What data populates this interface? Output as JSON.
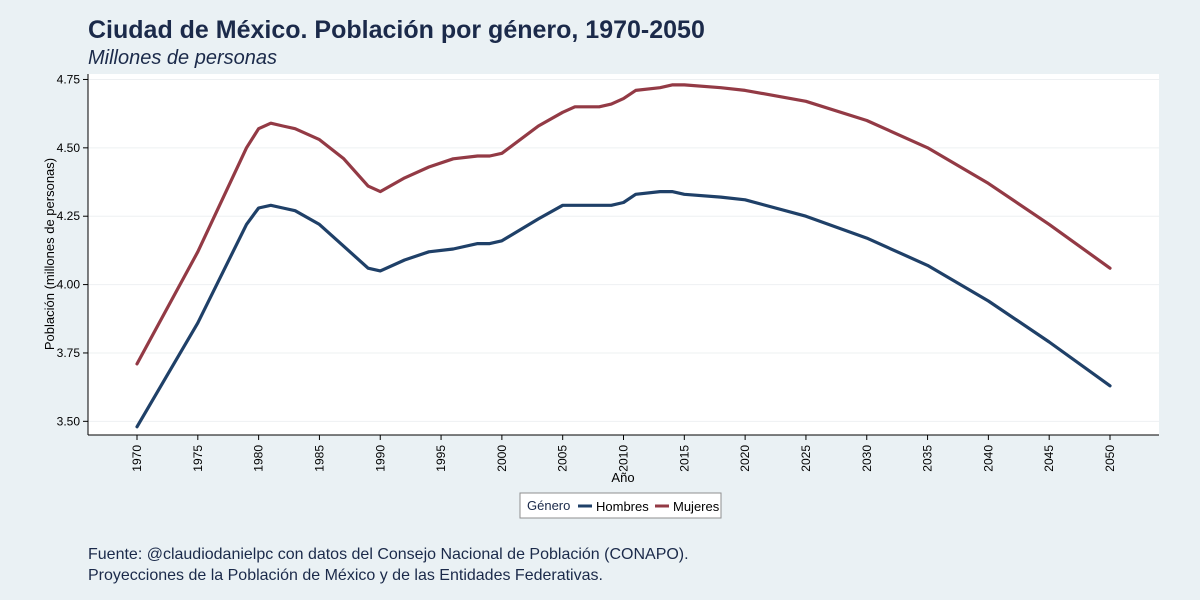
{
  "chart_data": {
    "type": "line",
    "title": "Ciudad de México. Población por género, 1970-2050",
    "subtitle": "Millones de personas",
    "xlabel": "Año",
    "ylabel": "Población (millones de personas)",
    "xlim": [
      1970,
      2050
    ],
    "ylim": [
      3.45,
      4.77
    ],
    "xticks": [
      1970,
      1975,
      1980,
      1985,
      1990,
      1995,
      2000,
      2005,
      2010,
      2015,
      2020,
      2025,
      2030,
      2035,
      2040,
      2045,
      2050
    ],
    "yticks": [
      3.5,
      3.75,
      4.0,
      4.25,
      4.5,
      4.75
    ],
    "ytick_labels": [
      "3.50",
      "3.75",
      "4.00",
      "4.25",
      "4.50",
      "4.75"
    ],
    "grid": true,
    "legend": {
      "title": "Género",
      "placement": "bottom-center"
    },
    "series": [
      {
        "name": "Hombres",
        "color": "#1f4068",
        "x": [
          1970,
          1975,
          1979,
          1980,
          1981,
          1982,
          1983,
          1985,
          1987,
          1989,
          1990,
          1992,
          1994,
          1996,
          1998,
          1999,
          2000,
          2003,
          2005,
          2006,
          2008,
          2009,
          2010,
          2011,
          2013,
          2014,
          2015,
          2018,
          2020,
          2025,
          2030,
          2035,
          2040,
          2045,
          2050
        ],
        "values": [
          3.48,
          3.86,
          4.22,
          4.28,
          4.29,
          4.28,
          4.27,
          4.22,
          4.14,
          4.06,
          4.05,
          4.09,
          4.12,
          4.13,
          4.15,
          4.15,
          4.16,
          4.24,
          4.29,
          4.29,
          4.29,
          4.29,
          4.3,
          4.33,
          4.34,
          4.34,
          4.33,
          4.32,
          4.31,
          4.25,
          4.17,
          4.07,
          3.94,
          3.79,
          3.63
        ]
      },
      {
        "name": "Mujeres",
        "color": "#933a45",
        "x": [
          1970,
          1975,
          1979,
          1980,
          1981,
          1982,
          1983,
          1985,
          1987,
          1989,
          1990,
          1992,
          1994,
          1996,
          1998,
          1999,
          2000,
          2003,
          2005,
          2006,
          2008,
          2009,
          2010,
          2011,
          2013,
          2014,
          2015,
          2018,
          2020,
          2025,
          2030,
          2035,
          2040,
          2045,
          2050
        ],
        "values": [
          3.71,
          4.12,
          4.5,
          4.57,
          4.59,
          4.58,
          4.57,
          4.53,
          4.46,
          4.36,
          4.34,
          4.39,
          4.43,
          4.46,
          4.47,
          4.47,
          4.48,
          4.58,
          4.63,
          4.65,
          4.65,
          4.66,
          4.68,
          4.71,
          4.72,
          4.73,
          4.73,
          4.72,
          4.71,
          4.67,
          4.6,
          4.5,
          4.37,
          4.22,
          4.06
        ]
      }
    ]
  },
  "caption": {
    "line1": "Fuente: @claudiodanielpc con datos del Consejo Nacional de Población (CONAPO).",
    "line2": "Proyecciones de la Población de México y de las Entidades Federativas."
  }
}
